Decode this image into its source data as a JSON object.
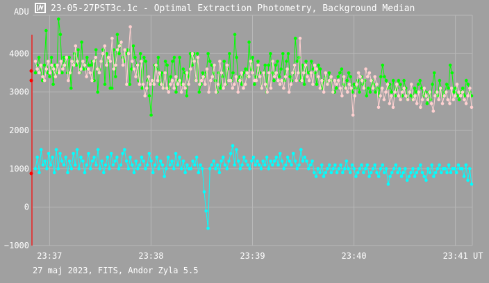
{
  "window": {
    "title": "23-05-27PST3c.1c - Optimal Extraction Photometry, Background Median",
    "app_icon": "photometry-app-icon"
  },
  "footer": {
    "caption": "27 maj 2023, FITS, Andor Zyla 5.5"
  },
  "colors": {
    "background": "#a0a0a0",
    "grid": "#b8b8b8",
    "series_green": "#00ff00",
    "series_pink": "#ffd0d0",
    "series_cyan": "#00ffff",
    "marker_line": "#ff0000"
  },
  "chart_data": {
    "type": "line",
    "title": "23-05-27PST3c.1c - Optimal Extraction Photometry, Background Median",
    "ylabel": "ADU",
    "xlabel": "UT",
    "x_unit": "UT",
    "xlim": [
      "23:36:50",
      "23:41:10"
    ],
    "ylim": [
      -1000,
      5000
    ],
    "y_ticks": [
      -1000,
      0,
      1000,
      2000,
      3000,
      4000
    ],
    "y_tick_labels": [
      "−1000",
      "0",
      "1000",
      "2000",
      "3000",
      "4000"
    ],
    "x_tick_labels": [
      "23:37",
      "23:38",
      "23:39",
      "23:40",
      "23:41"
    ],
    "grid": true,
    "legend": "none",
    "left_markers": [
      3550,
      3300,
      880
    ],
    "series": [
      {
        "color": "#00ff00",
        "values": [
          3500,
          3700,
          3900,
          3600,
          3300,
          3700,
          4600,
          3500,
          3400,
          3900,
          3200,
          3700,
          3500,
          4900,
          4500,
          3500,
          3900,
          3800,
          3500,
          3900,
          3100,
          3800,
          4000,
          3700,
          4100,
          3500,
          4300,
          3600,
          3600,
          3900,
          3700,
          3700,
          3800,
          3300,
          4100,
          3000,
          3600,
          3800,
          4100,
          3200,
          4000,
          3800,
          3100,
          3100,
          4100,
          3400,
          4500,
          4000,
          4300,
          3900,
          3800,
          4000,
          4100,
          3200,
          3600,
          4200,
          3900,
          3700,
          3300,
          4000,
          3100,
          3900,
          3800,
          3300,
          2900,
          2400,
          3300,
          3700,
          3600,
          3900,
          3200,
          3500,
          3100,
          3800,
          3700,
          3100,
          3400,
          3800,
          3900,
          3000,
          3300,
          3900,
          3200,
          3600,
          3500,
          2900,
          3400,
          4000,
          3700,
          4000,
          3300,
          4000,
          3000,
          3200,
          3500,
          3400,
          3500,
          4000,
          3800,
          3700,
          3500,
          3300,
          3000,
          3500,
          3100,
          3400,
          3800,
          3200,
          3600,
          4000,
          3300,
          3500,
          4500,
          3900,
          3300,
          3400,
          3200,
          3500,
          3600,
          3400,
          4300,
          3600,
          3900,
          3200,
          3400,
          3800,
          3500,
          3100,
          3500,
          3700,
          3000,
          3700,
          4000,
          3500,
          3300,
          3700,
          3800,
          3400,
          3600,
          4000,
          3300,
          3800,
          4000,
          3400,
          3300,
          3500,
          4400,
          3800,
          3900,
          3300,
          3700,
          3200,
          3800,
          3500,
          3500,
          3800,
          3600,
          3500,
          3200,
          3700,
          3600,
          3100,
          3300,
          3400,
          3200,
          3500,
          3300,
          3000,
          3000,
          3100,
          3400,
          3500,
          3600,
          3200,
          3100,
          3300,
          3500,
          3400,
          3000,
          3200,
          3100,
          3300,
          3000,
          3400,
          3200,
          3300,
          2900,
          3100,
          3000,
          3300,
          3200,
          3000,
          3100,
          2900,
          3400,
          3700,
          3400,
          3300,
          3100,
          3200,
          3000,
          3300,
          2900,
          3100,
          3300,
          3200,
          2900,
          3300,
          3100,
          2800,
          3000,
          2900,
          2800,
          3100,
          3000,
          3200,
          3300,
          3100,
          2900,
          3000,
          2700,
          3000,
          2800,
          3200,
          3500,
          3000,
          2900,
          3300,
          3100,
          2900,
          3000,
          3200,
          3100,
          3700,
          3500,
          3000,
          3100,
          2900,
          2800,
          3000,
          3100,
          2900,
          3300,
          3200,
          3000,
          2900
        ]
      },
      {
        "color": "#ffd0d0",
        "values": [
          3800,
          3600,
          3500,
          3700,
          3400,
          3300,
          3600,
          3800,
          3500,
          3700,
          3600,
          3400,
          3700,
          3500,
          3800,
          3600,
          3700,
          3900,
          3300,
          3500,
          3800,
          3700,
          4200,
          3800,
          3500,
          3600,
          3800,
          3700,
          3400,
          3600,
          3500,
          3300,
          3800,
          3900,
          3600,
          3500,
          3800,
          4000,
          4200,
          3700,
          3900,
          3800,
          4400,
          3600,
          3700,
          4100,
          4200,
          4300,
          3700,
          4100,
          3200,
          4000,
          4700,
          3800,
          3600,
          3400,
          3700,
          3200,
          3800,
          3200,
          2900,
          3100,
          3400,
          3200,
          3300,
          3200,
          3700,
          3300,
          3500,
          3200,
          3100,
          3500,
          3100,
          3000,
          3200,
          3300,
          3100,
          3400,
          3200,
          3300,
          3000,
          3200,
          3100,
          3500,
          3200,
          3600,
          4000,
          3800,
          3300,
          3900,
          3200,
          3300,
          3400,
          3200,
          3600,
          3000,
          3300,
          3400,
          3700,
          3000,
          3200,
          3800,
          3500,
          3100,
          3200,
          3700,
          3300,
          3300,
          3100,
          3200,
          3400,
          3000,
          3300,
          3500,
          3100,
          3200,
          3500,
          3400,
          3800,
          3500,
          3300,
          3300,
          3700,
          3400,
          3100,
          3500,
          3200,
          3000,
          3500,
          3100,
          3800,
          3400,
          3500,
          3300,
          3200,
          3300,
          3100,
          3400,
          3600,
          3000,
          3200,
          3500,
          3700,
          3300,
          3500,
          4400,
          3300,
          3500,
          3700,
          3400,
          3300,
          3500,
          3200,
          3700,
          3600,
          3400,
          3100,
          3300,
          3000,
          3500,
          3200,
          3300,
          3400,
          3000,
          3300,
          3200,
          3300,
          3100,
          2900,
          3400,
          3100,
          3000,
          3200,
          3100,
          2400,
          2900,
          3200,
          3500,
          3400,
          3300,
          3100,
          3600,
          3400,
          3500,
          3300,
          3100,
          3400,
          3200,
          2600,
          2900,
          3100,
          2800,
          3000,
          3200,
          2700,
          2900,
          2600,
          3000,
          3200,
          2900,
          2800,
          3000,
          3100,
          2900,
          2800,
          3000,
          3200,
          2800,
          2900,
          2700,
          3000,
          2600,
          2800,
          3100,
          2900,
          2800,
          3000,
          2700,
          2500,
          2900,
          3000,
          2800,
          3100,
          2700,
          2900,
          3000,
          2800,
          2700,
          3100,
          2800,
          2900,
          3200,
          3000,
          2900,
          3000,
          2800,
          2700,
          2900,
          3100,
          2600
        ]
      },
      {
        "color": "#00ffff",
        "values": [
          1000,
          1300,
          900,
          1500,
          1100,
          1200,
          1000,
          1400,
          1100,
          1300,
          900,
          1500,
          1000,
          1400,
          1200,
          1100,
          1300,
          900,
          1200,
          1000,
          1400,
          1100,
          1500,
          1000,
          1300,
          1200,
          900,
          1100,
          1400,
          1000,
          1200,
          1300,
          1100,
          1500,
          1000,
          1200,
          900,
          1100,
          1300,
          1000,
          1400,
          1100,
          1200,
          1300,
          1000,
          1100,
          1400,
          1500,
          1200,
          1000,
          1300,
          1100,
          900,
          1200,
          1000,
          1100,
          1300,
          1200,
          1000,
          1100,
          1400,
          1200,
          900,
          1100,
          1300,
          1000,
          1200,
          1100,
          800,
          1000,
          1300,
          1100,
          1200,
          1000,
          1400,
          1100,
          1300,
          1000,
          1200,
          900,
          1100,
          1000,
          1000,
          1200,
          1100,
          1300,
          900,
          1100,
          1000,
          400,
          -100,
          -550,
          1000,
          1100,
          1200,
          1000,
          1100,
          900,
          1200,
          1300,
          1100,
          1000,
          1200,
          1400,
          1600,
          1100,
          1500,
          1200,
          1000,
          1100,
          1300,
          1200,
          1100,
          1000,
          1200,
          1300,
          1100,
          1200,
          1100,
          1000,
          1200,
          1100,
          1300,
          1000,
          1200,
          1100,
          1200,
          1300,
          1100,
          1400,
          1200,
          1000,
          1100,
          1300,
          1200,
          1100,
          1400,
          1200,
          1000,
          1100,
          1500,
          1200,
          1300,
          1200,
          1000,
          1100,
          1200,
          900,
          800,
          1000,
          900,
          1100,
          800,
          900,
          1000,
          1100,
          900,
          1000,
          1100,
          900,
          1000,
          1100,
          900,
          1000,
          1200,
          1000,
          900,
          1100,
          1000,
          800,
          900,
          1000,
          1100,
          900,
          1000,
          1100,
          800,
          900,
          1000,
          1100,
          900,
          800,
          1000,
          1100,
          900,
          1000,
          600,
          800,
          900,
          1000,
          1100,
          900,
          1000,
          800,
          900,
          1000,
          700,
          800,
          900,
          1000,
          800,
          900,
          1000,
          1100,
          900,
          800,
          700,
          1000,
          900,
          1100,
          800,
          900,
          1000,
          1100,
          900,
          1000,
          1000,
          900,
          1100,
          900,
          1000,
          1000,
          900,
          1100,
          1000,
          1000,
          800,
          1100,
          700,
          1000,
          600
        ]
      }
    ]
  }
}
